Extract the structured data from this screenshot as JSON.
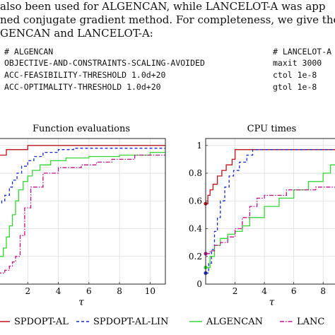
{
  "paragraph": {
    "line1": "also been used for ALGENCAN, while LANCELOT-A was app",
    "line2": "ned conjugate gradient method. For completeness, we give the s",
    "line3": "GENCAN and LANCELOT-A:"
  },
  "settings": {
    "algencan": {
      "header": "# ALGENCAN",
      "lines": [
        "OBJECTIVE-AND-CONSTRAINTS-SCALING-AVOIDED",
        "ACC-FEASIBILITY-THRESHOLD 1.0d+20",
        "ACC-OPTIMALITY-THRESHOLD 1.0d+20"
      ]
    },
    "lancelot": {
      "header": "# LANCELOT-A",
      "lines": [
        "maxit 3000",
        "ctol 1e-8",
        "gtol 1e-8"
      ]
    }
  },
  "legend": {
    "entries": [
      "SPDOPT-AL",
      "SPDOPT-AL-LIN",
      "ALGENCAN",
      "LANC"
    ]
  },
  "colors": {
    "spdopt_al": "#c0101a",
    "spdopt_al_lin": "#1a2acc",
    "algencan": "#33d633",
    "lancelot": "#c0118a"
  },
  "chart_data": [
    {
      "type": "line",
      "title": "Function evaluations",
      "xlabel": "τ",
      "ylabel": "",
      "xlim": [
        0,
        11
      ],
      "ylim": [
        0,
        1.05
      ],
      "xticks": [
        "2",
        "4",
        "6",
        "8",
        "10"
      ],
      "yticks": [],
      "grid": true,
      "series": [
        {
          "name": "SPDOPT-AL",
          "step": true,
          "x": [
            0,
            0.6,
            2.0,
            11
          ],
          "y": [
            0.93,
            0.97,
            1.0,
            1.0
          ]
        },
        {
          "name": "SPDOPT-AL-LIN",
          "step": true,
          "x": [
            0,
            0.3,
            0.5,
            0.8,
            1.0,
            1.3,
            1.6,
            2.0,
            2.4,
            3.0,
            4.0,
            5.0,
            11
          ],
          "y": [
            0.58,
            0.6,
            0.64,
            0.7,
            0.75,
            0.8,
            0.85,
            0.89,
            0.92,
            0.95,
            0.97,
            0.98,
            0.98
          ]
        },
        {
          "name": "ALGENCAN",
          "step": true,
          "x": [
            0,
            0.4,
            0.6,
            0.8,
            1.0,
            1.2,
            1.4,
            1.7,
            2.0,
            2.3,
            2.8,
            3.5,
            4.5,
            6.0,
            8.0,
            10.0,
            11
          ],
          "y": [
            0.2,
            0.26,
            0.34,
            0.42,
            0.5,
            0.6,
            0.68,
            0.74,
            0.78,
            0.82,
            0.86,
            0.89,
            0.91,
            0.92,
            0.93,
            0.95,
            0.95
          ]
        },
        {
          "name": "LANCELOT-A",
          "step": true,
          "x": [
            0,
            0.5,
            0.8,
            1.0,
            1.2,
            1.5,
            1.8,
            2.2,
            3.0,
            4.0,
            5.5,
            6.5,
            7.5,
            9.0,
            11
          ],
          "y": [
            0.08,
            0.1,
            0.13,
            0.16,
            0.2,
            0.35,
            0.55,
            0.7,
            0.8,
            0.84,
            0.86,
            0.88,
            0.9,
            0.93,
            0.93
          ]
        }
      ]
    },
    {
      "type": "line",
      "title": "CPU times",
      "xlabel": "τ",
      "ylabel": "",
      "xlim": [
        0,
        9
      ],
      "ylim": [
        0,
        1.05
      ],
      "xticks": [
        "2",
        "4",
        "6",
        "8"
      ],
      "yticks": [
        "0",
        "0.2",
        "0.4",
        "0.6",
        "0.8",
        "1"
      ],
      "grid": true,
      "series": [
        {
          "name": "SPDOPT-AL",
          "step": true,
          "x": [
            0,
            0.15,
            0.3,
            0.5,
            0.8,
            1.1,
            1.4,
            1.8,
            2.0,
            9
          ],
          "y": [
            0.58,
            0.64,
            0.68,
            0.72,
            0.78,
            0.82,
            0.86,
            0.9,
            0.97,
            0.97
          ]
        },
        {
          "name": "SPDOPT-AL-LIN",
          "step": true,
          "x": [
            0,
            0.2,
            0.4,
            0.6,
            0.8,
            1.0,
            1.3,
            1.6,
            1.9,
            2.3,
            2.8,
            3.2,
            9
          ],
          "y": [
            0.08,
            0.15,
            0.25,
            0.38,
            0.48,
            0.6,
            0.7,
            0.78,
            0.82,
            0.88,
            0.93,
            0.97,
            0.97
          ]
        },
        {
          "name": "ALGENCAN",
          "step": true,
          "x": [
            0,
            0.3,
            0.6,
            1.0,
            1.5,
            2.0,
            2.5,
            3.0,
            4.0,
            5.0,
            6.0,
            7.0,
            8.0,
            8.5,
            9
          ],
          "y": [
            0.12,
            0.2,
            0.28,
            0.33,
            0.36,
            0.38,
            0.42,
            0.48,
            0.56,
            0.62,
            0.68,
            0.74,
            0.8,
            0.86,
            0.88
          ]
        },
        {
          "name": "LANCELOT-A",
          "step": true,
          "x": [
            0,
            0.3,
            0.6,
            1.0,
            1.5,
            2.0,
            2.5,
            3.0,
            3.5,
            4.0,
            5.5,
            7.5,
            9
          ],
          "y": [
            0.22,
            0.24,
            0.28,
            0.3,
            0.34,
            0.4,
            0.48,
            0.56,
            0.62,
            0.64,
            0.68,
            0.7,
            0.72
          ]
        }
      ]
    }
  ]
}
